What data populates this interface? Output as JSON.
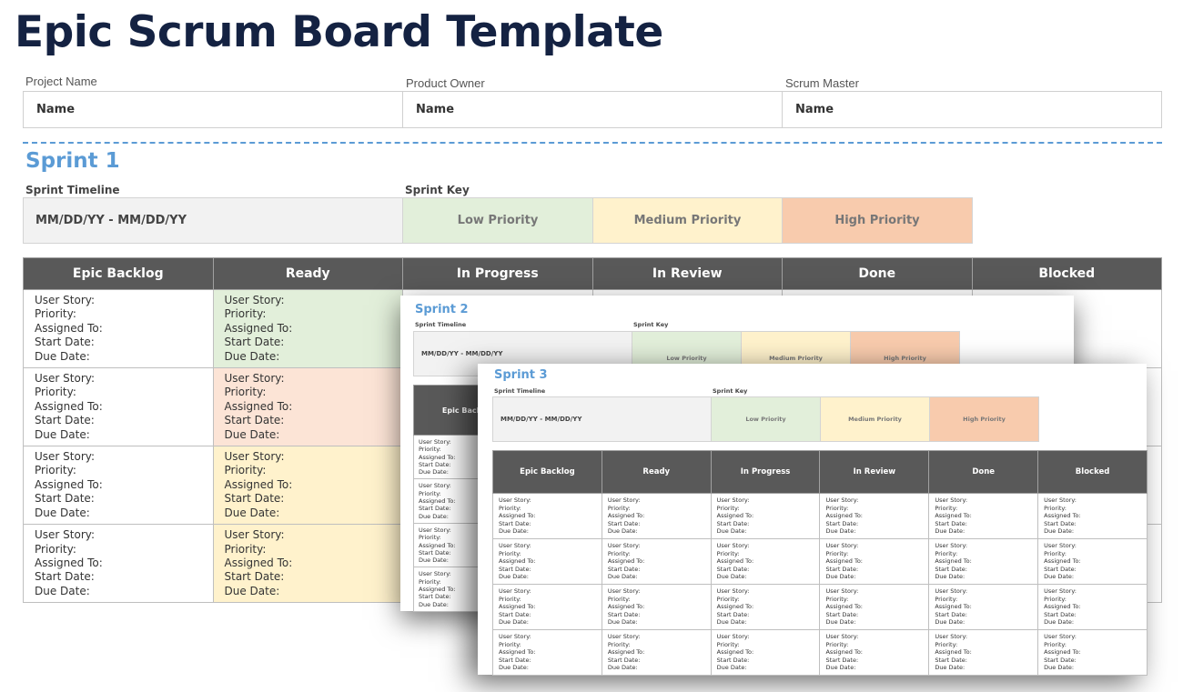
{
  "title": "Epic Scrum Board Template",
  "project_info": {
    "fields": [
      {
        "label": "Project Name",
        "value": "Name"
      },
      {
        "label": "Product Owner",
        "value": "Name"
      },
      {
        "label": "Scrum Master",
        "value": "Name"
      }
    ]
  },
  "colors": {
    "title": "#142242",
    "accent_blue": "#5b9bd5",
    "header_bg": "#595959",
    "low_priority": "#e2efda",
    "medium_priority": "#fff2cc",
    "high_priority": "#f8cbad",
    "high_priority_light": "#fce4d6",
    "timeline_bg": "#f2f2f2"
  },
  "card_fields": [
    "User Story:",
    "Priority:",
    "Assigned To:",
    "Start Date:",
    "Due Date:"
  ],
  "columns": [
    "Epic Backlog",
    "Ready",
    "In Progress",
    "In Review",
    "Done",
    "Blocked"
  ],
  "sprints": [
    {
      "name": "Sprint 1",
      "timeline_label": "Sprint Timeline",
      "timeline_value": "MM/DD/YY - MM/DD/YY",
      "key_label": "Sprint Key",
      "key": [
        "Low Priority",
        "Medium Priority",
        "High Priority"
      ],
      "ready_row_colors": [
        "low",
        "high-light",
        "medium",
        "medium"
      ]
    },
    {
      "name": "Sprint 2",
      "timeline_label": "Sprint Timeline",
      "timeline_value": "MM/DD/YY - MM/DD/YY",
      "key_label": "Sprint Key",
      "key": [
        "Low Priority",
        "Medium Priority",
        "High Priority"
      ]
    },
    {
      "name": "Sprint 3",
      "timeline_label": "Sprint Timeline",
      "timeline_value": "MM/DD/YY - MM/DD/YY",
      "key_label": "Sprint Key",
      "key": [
        "Low Priority",
        "Medium Priority",
        "High Priority"
      ]
    }
  ]
}
